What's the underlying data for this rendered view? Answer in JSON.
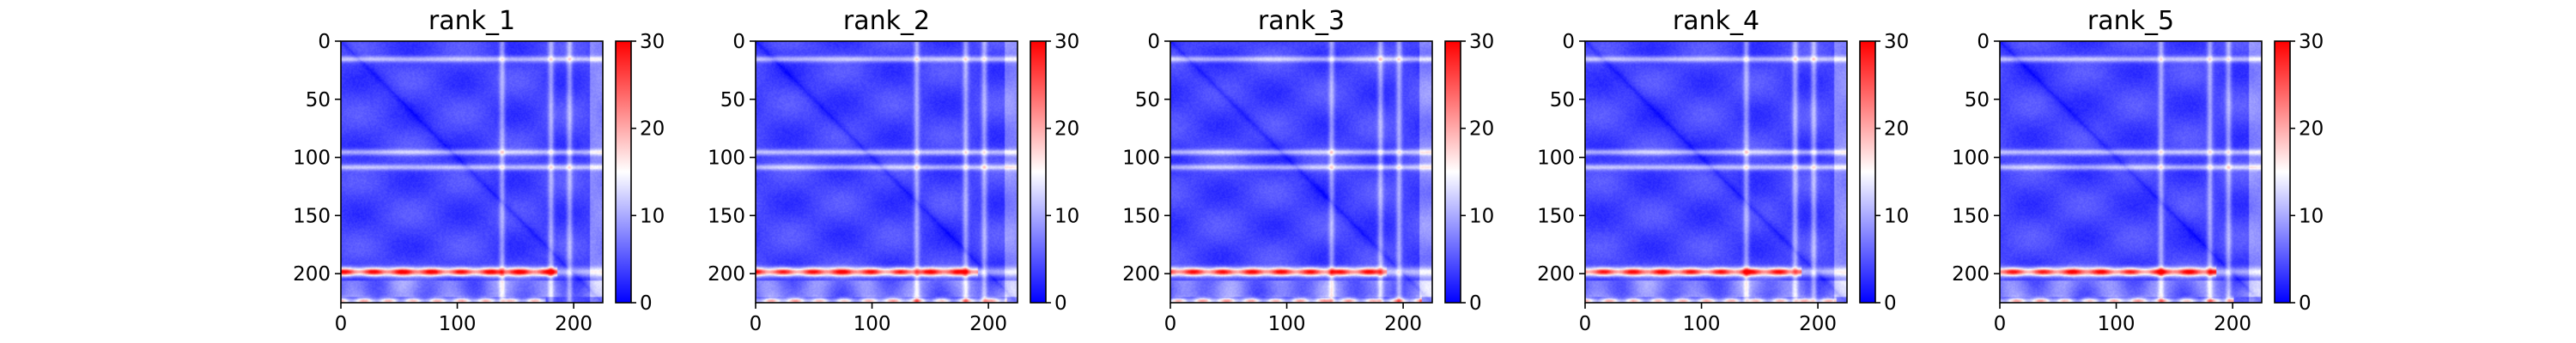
{
  "chart_data": [
    {
      "type": "heatmap",
      "title": "rank_1",
      "matrix_size": 225,
      "xlim": [
        0,
        225
      ],
      "ylim": [
        225,
        0
      ],
      "xticks": [
        0,
        100,
        200
      ],
      "yticks": [
        0,
        50,
        100,
        150,
        200
      ],
      "colorbar": {
        "range": [
          0,
          30
        ],
        "ticks": [
          0,
          10,
          20,
          30
        ],
        "colormap": "bwr",
        "low_color": "#0000ff",
        "mid_color": "#ffffff",
        "high_color": "#ff0000"
      },
      "features": {
        "white_bands": [
          15,
          95,
          108,
          198
        ],
        "white_columns": [
          138,
          180,
          196
        ],
        "red_band": {
          "row": 198,
          "from": 0,
          "to": 185,
          "level": 28
        },
        "red_bottom": {
          "row": 223,
          "from": 0,
          "to": 175,
          "level": 22
        }
      }
    },
    {
      "type": "heatmap",
      "title": "rank_2",
      "matrix_size": 225,
      "xlim": [
        0,
        225
      ],
      "ylim": [
        225,
        0
      ],
      "xticks": [
        0,
        100,
        200
      ],
      "yticks": [
        0,
        50,
        100,
        150,
        200
      ],
      "colorbar": {
        "range": [
          0,
          30
        ],
        "ticks": [
          0,
          10,
          20,
          30
        ],
        "colormap": "bwr",
        "low_color": "#0000ff",
        "mid_color": "#ffffff",
        "high_color": "#ff0000"
      },
      "features": {
        "white_bands": [
          15,
          95,
          108,
          198
        ],
        "white_columns": [
          138,
          180,
          196
        ],
        "red_band": {
          "row": 198,
          "from": 0,
          "to": 190,
          "level": 27
        },
        "red_bottom": {
          "row": 223,
          "from": 0,
          "to": 215,
          "level": 22
        }
      }
    },
    {
      "type": "heatmap",
      "title": "rank_3",
      "matrix_size": 225,
      "xlim": [
        0,
        225
      ],
      "ylim": [
        225,
        0
      ],
      "xticks": [
        0,
        100,
        200
      ],
      "yticks": [
        0,
        50,
        100,
        150,
        200
      ],
      "colorbar": {
        "range": [
          0,
          30
        ],
        "ticks": [
          0,
          10,
          20,
          30
        ],
        "colormap": "bwr",
        "low_color": "#0000ff",
        "mid_color": "#ffffff",
        "high_color": "#ff0000"
      },
      "features": {
        "white_bands": [
          15,
          95,
          108,
          198
        ],
        "white_columns": [
          138,
          180,
          196
        ],
        "red_band": {
          "row": 198,
          "from": 0,
          "to": 185,
          "level": 27
        },
        "red_bottom": {
          "row": 223,
          "from": 0,
          "to": 215,
          "level": 23
        }
      }
    },
    {
      "type": "heatmap",
      "title": "rank_4",
      "matrix_size": 225,
      "xlim": [
        0,
        225
      ],
      "ylim": [
        225,
        0
      ],
      "xticks": [
        0,
        100,
        200
      ],
      "yticks": [
        0,
        50,
        100,
        150,
        200
      ],
      "colorbar": {
        "range": [
          0,
          30
        ],
        "ticks": [
          0,
          10,
          20,
          30
        ],
        "colormap": "bwr",
        "low_color": "#0000ff",
        "mid_color": "#ffffff",
        "high_color": "#ff0000"
      },
      "features": {
        "white_bands": [
          15,
          95,
          108,
          198
        ],
        "white_columns": [
          138,
          180,
          196
        ],
        "red_band": {
          "row": 198,
          "from": 0,
          "to": 185,
          "level": 27
        },
        "red_bottom": {
          "row": 223,
          "from": 0,
          "to": 215,
          "level": 22
        }
      }
    },
    {
      "type": "heatmap",
      "title": "rank_5",
      "matrix_size": 225,
      "xlim": [
        0,
        225
      ],
      "ylim": [
        225,
        0
      ],
      "xticks": [
        0,
        100,
        200
      ],
      "yticks": [
        0,
        50,
        100,
        150,
        200
      ],
      "colorbar": {
        "range": [
          0,
          30
        ],
        "ticks": [
          0,
          10,
          20,
          30
        ],
        "colormap": "bwr",
        "low_color": "#0000ff",
        "mid_color": "#ffffff",
        "high_color": "#ff0000"
      },
      "features": {
        "white_bands": [
          15,
          95,
          108,
          198
        ],
        "white_columns": [
          138,
          180,
          196
        ],
        "red_band": {
          "row": 198,
          "from": 0,
          "to": 185,
          "level": 27
        },
        "red_bottom": {
          "row": 223,
          "from": 0,
          "to": 200,
          "level": 22
        }
      }
    }
  ]
}
